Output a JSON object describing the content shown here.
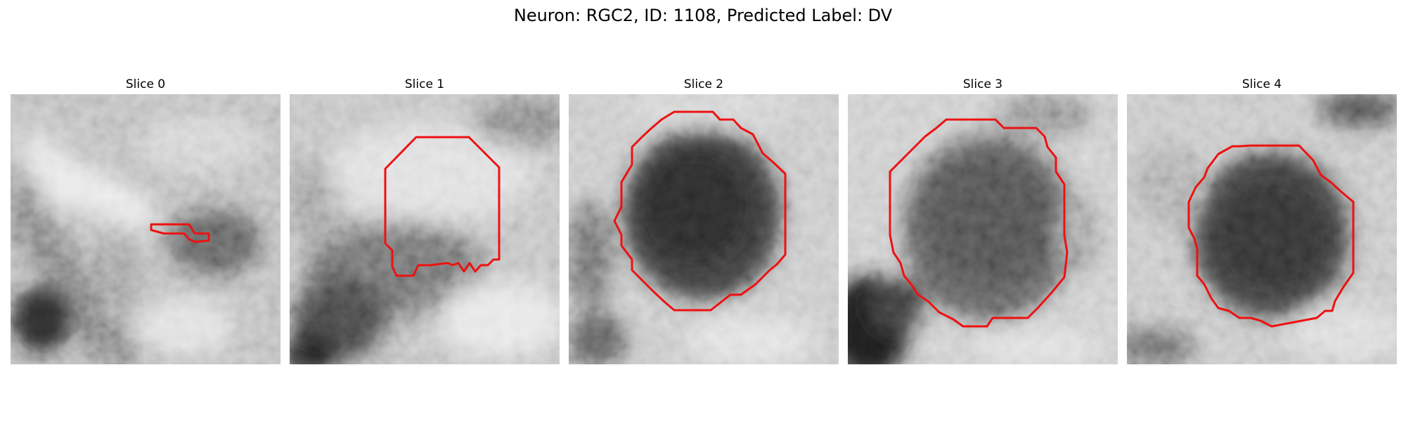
{
  "figure": {
    "title": "Neuron: RGC2, ID: 1108, Predicted Label: DV",
    "contour_color": "#ee1111",
    "image_colormap": "grayscale",
    "panels": [
      {
        "title": "Slice 0"
      },
      {
        "title": "Slice 1"
      },
      {
        "title": "Slice 2"
      },
      {
        "title": "Slice 3"
      },
      {
        "title": "Slice 4"
      }
    ]
  }
}
